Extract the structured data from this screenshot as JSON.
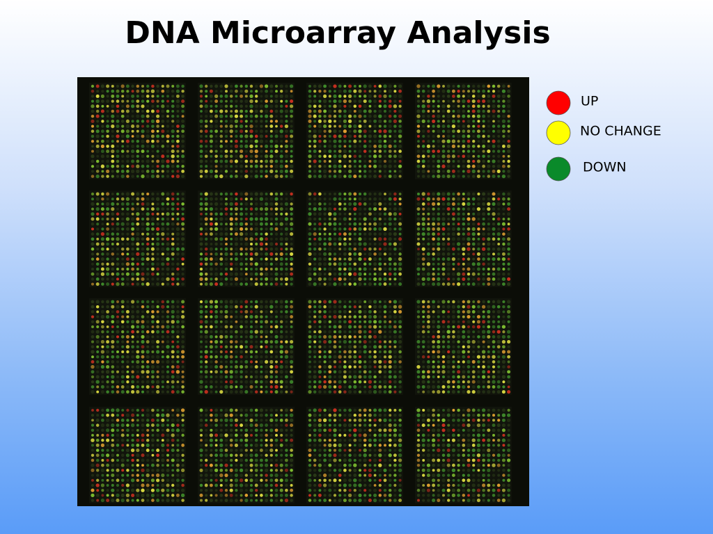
{
  "header": {
    "title": "DNA Microarray Analysis"
  },
  "legend": {
    "items": [
      {
        "label": "UP",
        "color": "#ff0000"
      },
      {
        "label": "NO CHANGE",
        "color": "#ffff00"
      },
      {
        "label": "DOWN",
        "color": "#0a8a2a"
      }
    ]
  }
}
